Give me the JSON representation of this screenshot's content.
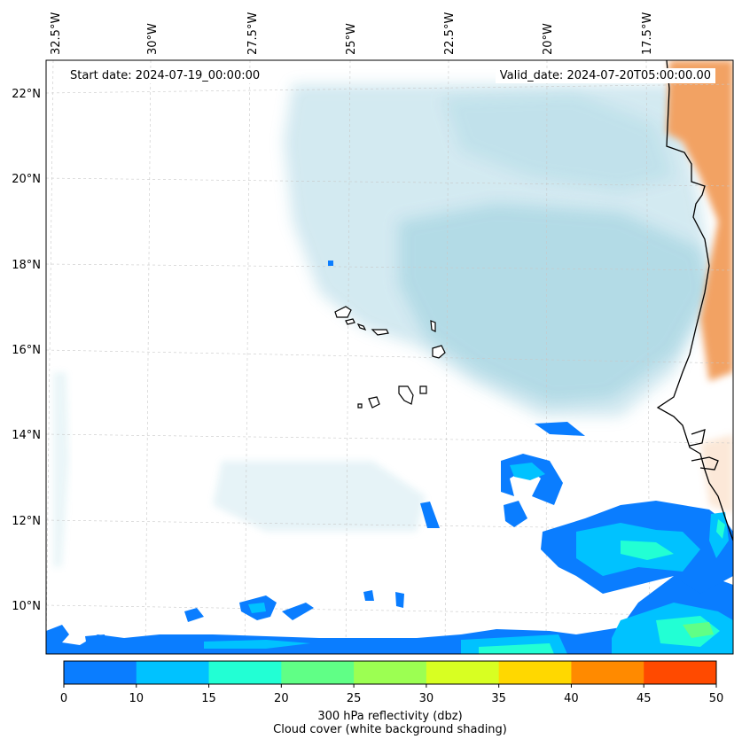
{
  "header": {
    "start_date": "Start date: 2024-07-19_00:00:00",
    "valid_date": "Valid_date: 2024-07-20T05:00:00.00"
  },
  "axes": {
    "lon_labels": [
      "32.5°W",
      "30°W",
      "27.5°W",
      "25°W",
      "22.5°W",
      "20°W",
      "17.5°W"
    ],
    "lat_labels": [
      "22°N",
      "20°N",
      "18°N",
      "16°N",
      "14°N",
      "12°N",
      "10°N"
    ]
  },
  "colorbar": {
    "ticks": [
      "0",
      "10",
      "15",
      "20",
      "25",
      "30",
      "35",
      "40",
      "45",
      "50"
    ],
    "colors": [
      "#0a7dff",
      "#00c2ff",
      "#22ffd4",
      "#60ff86",
      "#9cff52",
      "#d8ff22",
      "#ffd800",
      "#ff8a00",
      "#ff4a00"
    ],
    "label_line1": "300 hPa reflectivity (dbz)",
    "label_line2": "Cloud cover (white background shading)"
  },
  "layers": {
    "cloud_color": "#a9d6e3",
    "land_color": "#f2a263",
    "coast_color": "#000000",
    "grid_color": "#c8c8c8"
  }
}
